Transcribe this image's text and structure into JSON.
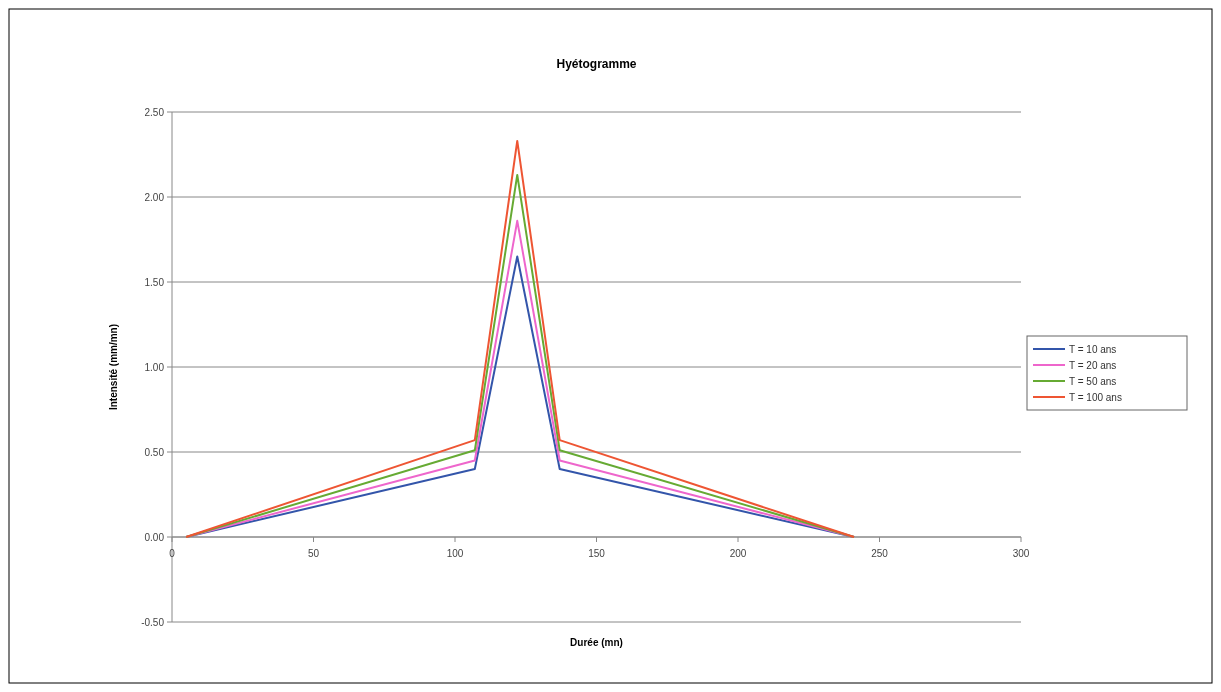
{
  "chart_data": {
    "type": "line",
    "title": "Hyétogramme",
    "xlabel": "Durée (mn)",
    "ylabel": "Intensité (mm/mn)",
    "x": [
      5,
      107,
      122,
      137,
      241
    ],
    "series": [
      {
        "name": "T = 10 ans",
        "color": "#3355aa",
        "values": [
          0,
          0.4,
          1.65,
          0.4,
          0
        ]
      },
      {
        "name": "T = 20 ans",
        "color": "#ee66cc",
        "values": [
          0,
          0.45,
          1.86,
          0.45,
          0
        ]
      },
      {
        "name": "T = 50 ans",
        "color": "#66aa33",
        "values": [
          0,
          0.51,
          2.13,
          0.51,
          0
        ]
      },
      {
        "name": "T = 100 ans",
        "color": "#ee5533",
        "values": [
          0,
          0.57,
          2.33,
          0.57,
          0
        ]
      }
    ],
    "xlim": [
      0,
      300
    ],
    "xticks": [
      0,
      50,
      100,
      150,
      200,
      250,
      300
    ],
    "ylim": [
      -0.5,
      2.5
    ],
    "yticks": [
      {
        "value": -0.5,
        "label": "-0.50"
      },
      {
        "value": 0,
        "label": "0.00"
      },
      {
        "value": 0.5,
        "label": "0.50"
      },
      {
        "value": 1,
        "label": "1.00"
      },
      {
        "value": 1.5,
        "label": "1.50"
      },
      {
        "value": 2,
        "label": "2.00"
      },
      {
        "value": 2.5,
        "label": "2.50"
      }
    ],
    "grid": "y",
    "legend": "right",
    "marker": "none",
    "line_style": "solid"
  }
}
